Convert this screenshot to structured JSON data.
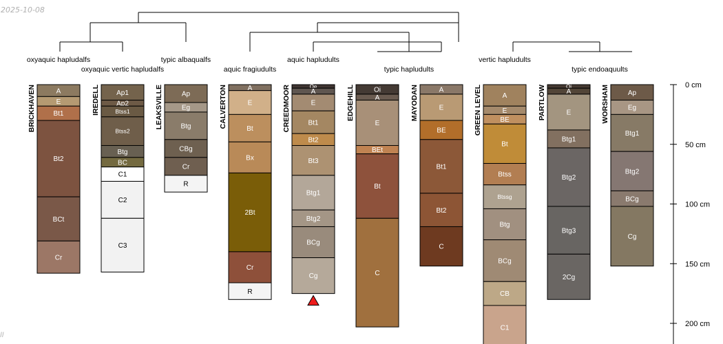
{
  "figure": {
    "type": "soil-profile-sketch",
    "date_stamp": "2025-10-08",
    "corner_mark": "ll",
    "depth_axis": {
      "unit": "cm",
      "max_depth_cm": 220,
      "ticks": [
        {
          "depth": 0,
          "label": "0 cm"
        },
        {
          "depth": 50,
          "label": "50 cm"
        },
        {
          "depth": 100,
          "label": "100 cm"
        },
        {
          "depth": 150,
          "label": "150 cm"
        },
        {
          "depth": 200,
          "label": "200 cm"
        }
      ]
    },
    "groups": [
      {
        "label": "oxyaquic hapludalfs",
        "members": [
          "BRICKHAVEN"
        ]
      },
      {
        "label": "oxyaquic vertic hapludalfs",
        "members": [
          "IREDELL"
        ]
      },
      {
        "label": "typic albaqualfs",
        "members": [
          "LEAKSVILLE"
        ]
      },
      {
        "label": "aquic fragiudults",
        "members": [
          "CALVERTON"
        ]
      },
      {
        "label": "aquic hapludults",
        "members": [
          "CREEDMOOR"
        ]
      },
      {
        "label": "typic hapludults",
        "members": [
          "EDGEHILL",
          "MAYODAN"
        ]
      },
      {
        "label": "vertic hapludults",
        "members": [
          "GREEN LEVEL"
        ]
      },
      {
        "label": "typic endoaquults",
        "members": [
          "PARTLOW",
          "WORSHAM"
        ]
      }
    ],
    "profiles": [
      {
        "name": "BRICKHAVEN",
        "horizons": [
          {
            "name": "A",
            "top": 0,
            "bottom": 10,
            "color": "#8c7a60"
          },
          {
            "name": "E",
            "top": 10,
            "bottom": 18,
            "color": "#b59a72"
          },
          {
            "name": "Bt1",
            "top": 18,
            "bottom": 30,
            "color": "#b0704a"
          },
          {
            "name": "Bt2",
            "top": 30,
            "bottom": 94,
            "color": "#7d5340"
          },
          {
            "name": "BCt",
            "top": 94,
            "bottom": 131,
            "color": "#7a5848"
          },
          {
            "name": "Cr",
            "top": 131,
            "bottom": 158,
            "color": "#9c7766"
          }
        ]
      },
      {
        "name": "IREDELL",
        "horizons": [
          {
            "name": "Ap1",
            "top": 0,
            "bottom": 13,
            "color": "#74634c"
          },
          {
            "name": "Ap2",
            "top": 13,
            "bottom": 18,
            "color": "#6d5a46"
          },
          {
            "name": "Btss1",
            "top": 18,
            "bottom": 27,
            "color": "#6a5a44"
          },
          {
            "name": "Btss2",
            "top": 27,
            "bottom": 51,
            "color": "#6f5e4a"
          },
          {
            "name": "Btg",
            "top": 51,
            "bottom": 61,
            "color": "#686052"
          },
          {
            "name": "BC",
            "top": 61,
            "bottom": 69,
            "color": "#746a40"
          },
          {
            "name": "C1",
            "top": 69,
            "bottom": 81,
            "color": "#ffffff"
          },
          {
            "name": "C2",
            "top": 81,
            "bottom": 112,
            "color": "#f2f2f2"
          },
          {
            "name": "C3",
            "top": 112,
            "bottom": 157,
            "color": "#f2f2f2"
          }
        ]
      },
      {
        "name": "LEAKSVILLE",
        "horizons": [
          {
            "name": "Ap",
            "top": 0,
            "bottom": 15,
            "color": "#7d6b56"
          },
          {
            "name": "Eg",
            "top": 15,
            "bottom": 23,
            "color": "#a59888"
          },
          {
            "name": "Btg",
            "top": 23,
            "bottom": 46,
            "color": "#8a7c6a"
          },
          {
            "name": "CBg",
            "top": 46,
            "bottom": 61,
            "color": "#6e6050"
          },
          {
            "name": "Cr",
            "top": 61,
            "bottom": 76,
            "color": "#6f5f50"
          },
          {
            "name": "R",
            "top": 76,
            "bottom": 90,
            "color": "#f4f4f4"
          }
        ]
      },
      {
        "name": "CALVERTON",
        "horizons": [
          {
            "name": "A",
            "top": 0,
            "bottom": 5,
            "color": "#807060"
          },
          {
            "name": "E",
            "top": 5,
            "bottom": 25,
            "color": "#d1b089"
          },
          {
            "name": "Bt",
            "top": 25,
            "bottom": 48,
            "color": "#bc8f5e"
          },
          {
            "name": "Bx",
            "top": 48,
            "bottom": 74,
            "color": "#b98a58"
          },
          {
            "name": "2Bt",
            "top": 74,
            "bottom": 140,
            "color": "#7a5d08"
          },
          {
            "name": "Cr",
            "top": 140,
            "bottom": 166,
            "color": "#8e503a"
          },
          {
            "name": "R",
            "top": 166,
            "bottom": 180,
            "color": "#f4f4f4"
          }
        ]
      },
      {
        "name": "CREEDMOOR",
        "bottom_marker": true,
        "horizons": [
          {
            "name": "Oe",
            "top": 0,
            "bottom": 3,
            "color": "#403632"
          },
          {
            "name": "A",
            "top": 3,
            "bottom": 8,
            "color": "#5f5650"
          },
          {
            "name": "E",
            "top": 8,
            "bottom": 22,
            "color": "#a38b72"
          },
          {
            "name": "Bt1",
            "top": 22,
            "bottom": 41,
            "color": "#a48762"
          },
          {
            "name": "Bt2",
            "top": 41,
            "bottom": 51,
            "color": "#be8b4c"
          },
          {
            "name": "Bt3",
            "top": 51,
            "bottom": 76,
            "color": "#ad9272"
          },
          {
            "name": "Btg1",
            "top": 76,
            "bottom": 105,
            "color": "#b3a799"
          },
          {
            "name": "Btg2",
            "top": 105,
            "bottom": 119,
            "color": "#a49686"
          },
          {
            "name": "BCg",
            "top": 119,
            "bottom": 145,
            "color": "#998b7c"
          },
          {
            "name": "Cg",
            "top": 145,
            "bottom": 175,
            "color": "#b5a99a"
          }
        ]
      },
      {
        "name": "EDGEHILL",
        "horizons": [
          {
            "name": "Oi",
            "top": 0,
            "bottom": 8,
            "color": "#443a34"
          },
          {
            "name": "A",
            "top": 8,
            "bottom": 13,
            "color": "#6a5b50"
          },
          {
            "name": "E",
            "top": 13,
            "bottom": 51,
            "color": "#a89078"
          },
          {
            "name": "BEt",
            "top": 51,
            "bottom": 58,
            "color": "#c08352"
          },
          {
            "name": "Bt",
            "top": 58,
            "bottom": 112,
            "color": "#8e523c"
          },
          {
            "name": "C",
            "top": 112,
            "bottom": 203,
            "color": "#a0703e"
          }
        ]
      },
      {
        "name": "MAYODAN",
        "horizons": [
          {
            "name": "A",
            "top": 0,
            "bottom": 8,
            "color": "#8a7868"
          },
          {
            "name": "E",
            "top": 8,
            "bottom": 30,
            "color": "#b99a74"
          },
          {
            "name": "BE",
            "top": 30,
            "bottom": 46,
            "color": "#b26e2a"
          },
          {
            "name": "Bt1",
            "top": 46,
            "bottom": 91,
            "color": "#8c5838"
          },
          {
            "name": "Bt2",
            "top": 91,
            "bottom": 119,
            "color": "#8d5535"
          },
          {
            "name": "C",
            "top": 119,
            "bottom": 152,
            "color": "#6e3a20"
          }
        ]
      },
      {
        "name": "GREEN LEVEL",
        "horizons": [
          {
            "name": "A",
            "top": 0,
            "bottom": 18,
            "color": "#a0825e"
          },
          {
            "name": "E",
            "top": 18,
            "bottom": 25,
            "color": "#a58a6c"
          },
          {
            "name": "BE",
            "top": 25,
            "bottom": 33,
            "color": "#c09060"
          },
          {
            "name": "Bt",
            "top": 33,
            "bottom": 66,
            "color": "#c08c38"
          },
          {
            "name": "Btss",
            "top": 66,
            "bottom": 84,
            "color": "#b27e52"
          },
          {
            "name": "Btssg",
            "top": 84,
            "bottom": 104,
            "color": "#aea290"
          },
          {
            "name": "Btg",
            "top": 104,
            "bottom": 130,
            "color": "#a19080"
          },
          {
            "name": "BCg",
            "top": 130,
            "bottom": 165,
            "color": "#9f8a74"
          },
          {
            "name": "CB",
            "top": 165,
            "bottom": 185,
            "color": "#bda887"
          },
          {
            "name": "C1",
            "top": 185,
            "bottom": 222,
            "color": "#c9a48c"
          }
        ]
      },
      {
        "name": "PARTLOW",
        "horizons": [
          {
            "name": "Oi",
            "top": 0,
            "bottom": 3,
            "color": "#463a32"
          },
          {
            "name": "A",
            "top": 3,
            "bottom": 8,
            "color": "#524538"
          },
          {
            "name": "E",
            "top": 8,
            "bottom": 38,
            "color": "#a39580"
          },
          {
            "name": "Btg1",
            "top": 38,
            "bottom": 53,
            "color": "#827060"
          },
          {
            "name": "Btg2",
            "top": 53,
            "bottom": 102,
            "color": "#6b6664"
          },
          {
            "name": "Btg3",
            "top": 102,
            "bottom": 142,
            "color": "#686562"
          },
          {
            "name": "2Cg",
            "top": 142,
            "bottom": 180,
            "color": "#6a6663"
          }
        ]
      },
      {
        "name": "WORSHAM",
        "horizons": [
          {
            "name": "Ap",
            "top": 0,
            "bottom": 13,
            "color": "#6d5a48"
          },
          {
            "name": "Eg",
            "top": 13,
            "bottom": 25,
            "color": "#a89684"
          },
          {
            "name": "Btg1",
            "top": 25,
            "bottom": 56,
            "color": "#877a66"
          },
          {
            "name": "Btg2",
            "top": 56,
            "bottom": 89,
            "color": "#857772"
          },
          {
            "name": "BCg",
            "top": 89,
            "bottom": 102,
            "color": "#8a7a6e"
          },
          {
            "name": "Cg",
            "top": 102,
            "bottom": 152,
            "color": "#847862"
          }
        ]
      }
    ],
    "colors": {
      "outline": "#000000",
      "marker": "#ee1c1c",
      "label_dark": "#000000",
      "label_light": "#ffffff"
    }
  }
}
